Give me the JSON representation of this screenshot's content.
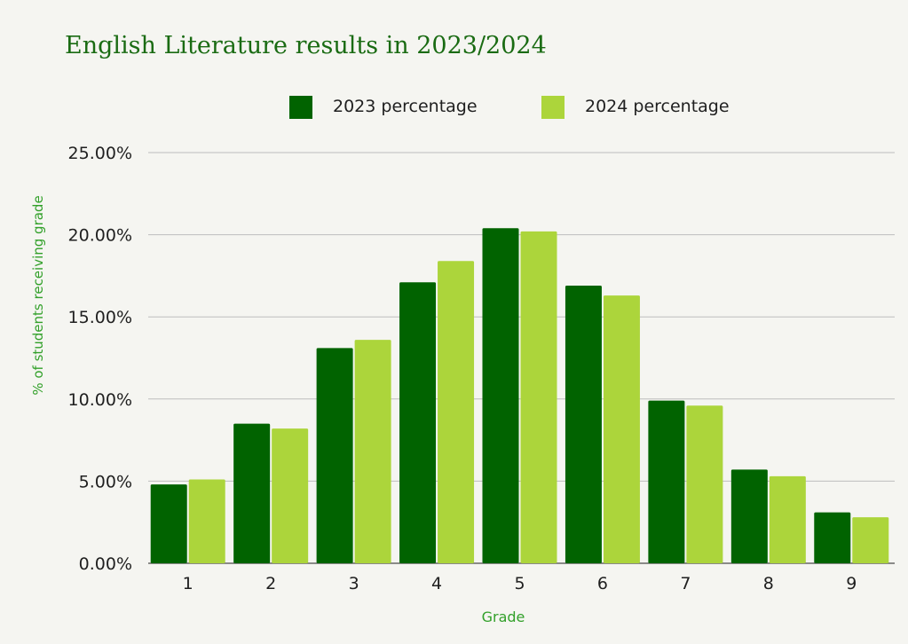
{
  "colors": {
    "series_2023": "#016300",
    "series_2024": "#acd53b",
    "title": "#1a6b13",
    "axis_title": "#32a02a",
    "gridline": "#bdbdbd",
    "tick_text": "#1f1f1f"
  },
  "chart_data": {
    "type": "bar",
    "title": "English Literature results in 2023/2024",
    "xlabel": "Grade",
    "ylabel": "% of students receiving grade",
    "categories": [
      "1",
      "2",
      "3",
      "4",
      "5",
      "6",
      "7",
      "8",
      "9"
    ],
    "series": [
      {
        "name": "2023 percentage",
        "values": [
          4.8,
          8.5,
          13.1,
          17.1,
          20.4,
          16.9,
          9.9,
          5.7,
          3.1
        ]
      },
      {
        "name": "2024 percentage",
        "values": [
          5.1,
          8.2,
          13.6,
          18.4,
          20.2,
          16.3,
          9.6,
          5.3,
          2.8
        ]
      }
    ],
    "ylim": [
      0,
      25
    ],
    "yticks": [
      "0.00%",
      "5.00%",
      "10.00%",
      "15.00%",
      "20.00%",
      "25.00%"
    ],
    "ytick_values": [
      0,
      5,
      10,
      15,
      20,
      25
    ],
    "grid": true,
    "legend_position": "top-center"
  }
}
